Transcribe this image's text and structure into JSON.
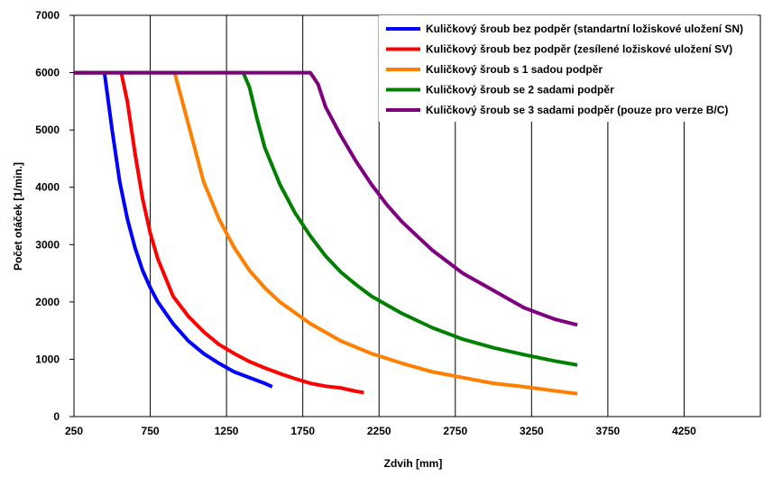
{
  "chart_data": {
    "type": "line",
    "title": "",
    "xlabel": "Zdvih [mm]",
    "ylabel": "Počet otáček  [1/min.]",
    "xlim": [
      250,
      4750
    ],
    "ylim": [
      0,
      7000
    ],
    "x_ticks": [
      "250",
      "750",
      "1250",
      "1750",
      "2250",
      "2750",
      "3250",
      "3750",
      "4250"
    ],
    "y_ticks": [
      "0",
      "1000",
      "2000",
      "3000",
      "4000",
      "5000",
      "6000",
      "7000"
    ],
    "grid": {
      "vertical": true,
      "horizontal": false
    },
    "legend_position": "top-right",
    "series": [
      {
        "name": "Kuličkový šroub bez podpěr (standartní ložiskové uložení SN)",
        "color": "#0000ff",
        "x": [
          250,
          450,
          470,
          500,
          550,
          600,
          650,
          700,
          750,
          800,
          900,
          1000,
          1100,
          1200,
          1300,
          1400,
          1500,
          1550
        ],
        "y": [
          6000,
          6000,
          5600,
          5000,
          4100,
          3450,
          2950,
          2550,
          2250,
          2000,
          1620,
          1320,
          1100,
          930,
          780,
          680,
          580,
          520
        ]
      },
      {
        "name": "Kuličkový šroub bez podpěr (zesílené ložiskové uložení SV)",
        "color": "#ff0000",
        "x": [
          560,
          600,
          650,
          700,
          750,
          800,
          900,
          1000,
          1100,
          1200,
          1300,
          1400,
          1500,
          1600,
          1700,
          1800,
          1900,
          2000,
          2100,
          2150
        ],
        "y": [
          6000,
          5500,
          4600,
          3800,
          3200,
          2750,
          2100,
          1750,
          1480,
          1260,
          1100,
          960,
          850,
          750,
          660,
          580,
          530,
          500,
          440,
          420
        ]
      },
      {
        "name": "Kuličkový šroub s 1 sadou podpěr",
        "color": "#ff7f00",
        "x": [
          250,
          910,
          950,
          1000,
          1100,
          1200,
          1300,
          1400,
          1500,
          1600,
          1800,
          2000,
          2200,
          2400,
          2600,
          2800,
          3000,
          3200,
          3400,
          3550
        ],
        "y": [
          6000,
          6000,
          5600,
          5100,
          4100,
          3450,
          2950,
          2550,
          2250,
          2000,
          1620,
          1320,
          1100,
          930,
          780,
          680,
          580,
          520,
          450,
          400
        ]
      },
      {
        "name": "Kuličkový šroub se 2 sadami podpěr",
        "color": "#008000",
        "x": [
          250,
          1360,
          1400,
          1450,
          1500,
          1600,
          1700,
          1800,
          1900,
          2000,
          2100,
          2200,
          2400,
          2600,
          2800,
          3000,
          3200,
          3400,
          3550
        ],
        "y": [
          6000,
          6000,
          5750,
          5200,
          4700,
          4050,
          3550,
          3150,
          2800,
          2520,
          2300,
          2100,
          1800,
          1550,
          1350,
          1200,
          1080,
          970,
          900
        ]
      },
      {
        "name": "Kuličkový šroub se 3 sadami podpěr (pouze pro verze B/C)",
        "color": "#7f007f",
        "x": [
          250,
          1800,
          1850,
          1900,
          2000,
          2100,
          2200,
          2300,
          2400,
          2500,
          2600,
          2700,
          2800,
          2900,
          3000,
          3100,
          3200,
          3300,
          3400,
          3550
        ],
        "y": [
          6000,
          6000,
          5800,
          5400,
          4900,
          4450,
          4050,
          3700,
          3400,
          3150,
          2900,
          2700,
          2500,
          2350,
          2200,
          2050,
          1900,
          1800,
          1700,
          1600
        ]
      }
    ]
  }
}
